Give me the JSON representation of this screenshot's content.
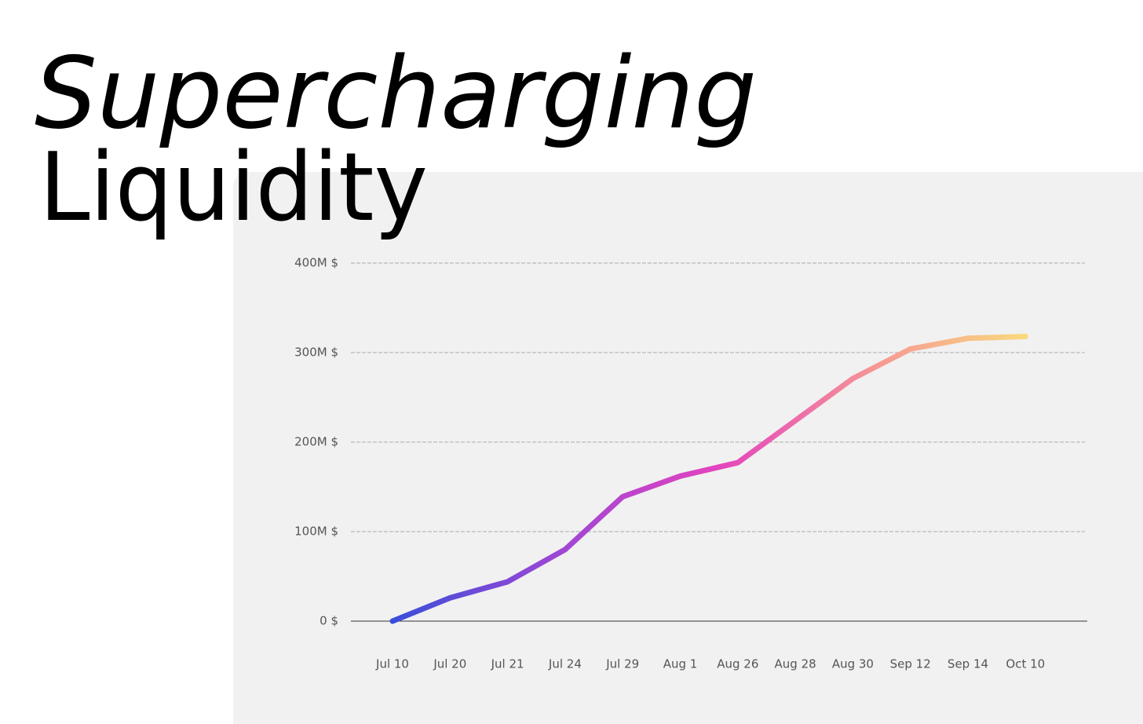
{
  "chart_data": {
    "type": "line",
    "title": "Supercharging",
    "subtitle": "Liquidity",
    "categories": [
      "Jul 10",
      "Jul 20",
      "Jul 21",
      "Jul 24",
      "Jul 29",
      "Aug 1",
      "Aug 26",
      "Aug 28",
      "Aug 30",
      "Sep 12",
      "Sep 14",
      "Oct 10"
    ],
    "values": [
      0,
      26,
      44,
      80,
      139,
      162,
      177,
      224,
      271,
      304,
      316,
      318
    ],
    "colors": [
      "#3a4fd9",
      "#9d46d6",
      "#e443be",
      "#f79a93",
      "#f9e27c"
    ],
    "ylim": [
      0,
      400
    ],
    "yticks": [
      {
        "value": 0,
        "label": "0 $"
      },
      {
        "value": 100,
        "label": "100M $"
      },
      {
        "value": 200,
        "label": "200M $"
      },
      {
        "value": 300,
        "label": "300M $"
      },
      {
        "value": 400,
        "label": "400M $"
      }
    ],
    "grid": true
  }
}
